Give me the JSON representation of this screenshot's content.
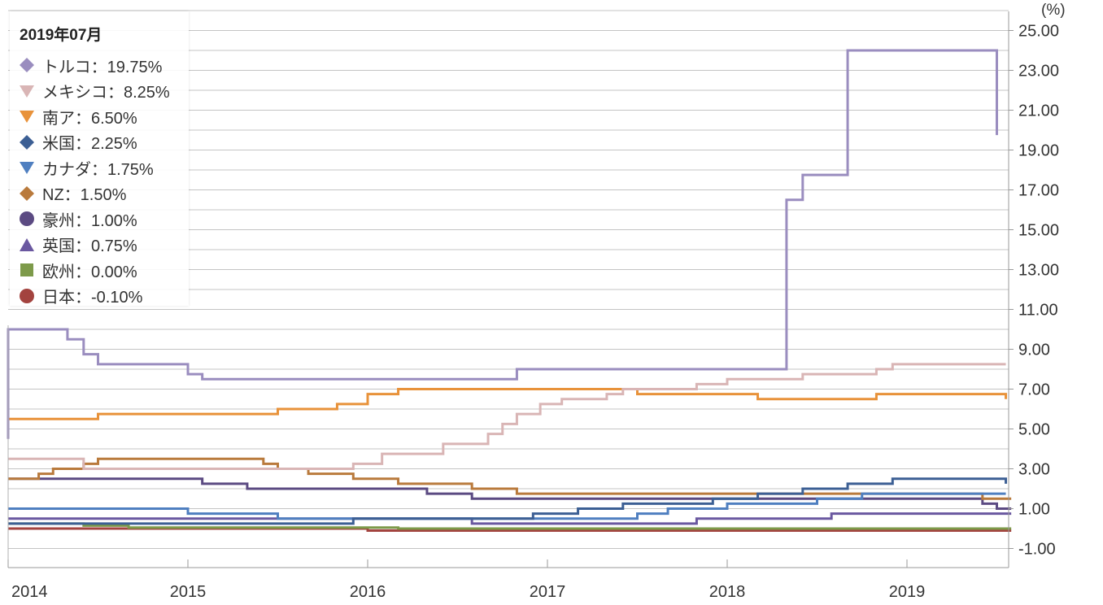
{
  "chart_data": {
    "type": "line",
    "step": true,
    "unit_label": "(%)",
    "x_ticks": [
      "2014",
      "2015",
      "2016",
      "2017",
      "2018",
      "2019"
    ],
    "y_ticks": [
      "25.00",
      "23.00",
      "21.00",
      "19.00",
      "17.00",
      "15.00",
      "13.00",
      "11.00",
      "9.00",
      "7.00",
      "5.00",
      "3.00",
      "1.00",
      "-1.00"
    ],
    "x_range": [
      2014.0,
      2019.58
    ],
    "y_range": [
      -1.5,
      26.5
    ],
    "grid": "horizontal",
    "legend_position": "top-left",
    "legend": {
      "title": "2019年07月",
      "items": [
        {
          "label": "トルコ：19.75%",
          "marker": "diamond",
          "color": "#9a8dbf"
        },
        {
          "label": "メキシコ：8.25%",
          "marker": "triangle-down",
          "color": "#d9b5b5"
        },
        {
          "label": "南ア：6.50%",
          "marker": "triangle-down",
          "color": "#e8923a"
        },
        {
          "label": "米国：2.25%",
          "marker": "diamond",
          "color": "#3c5f94"
        },
        {
          "label": "カナダ：1.75%",
          "marker": "triangle-down",
          "color": "#4f7fc0"
        },
        {
          "label": "NZ：1.50%",
          "marker": "diamond",
          "color": "#b97a3c"
        },
        {
          "label": "豪州：1.00%",
          "marker": "circle",
          "color": "#5b4a82"
        },
        {
          "label": "英国：0.75%",
          "marker": "triangle-up",
          "color": "#6a58a0"
        },
        {
          "label": "欧州：0.00%",
          "marker": "square",
          "color": "#7d9a4a"
        },
        {
          "label": "日本：-0.10%",
          "marker": "circle",
          "color": "#a3433f"
        }
      ]
    },
    "series": [
      {
        "name": "トルコ",
        "color": "#9a8dbf",
        "points": [
          [
            2014.0,
            4.5
          ],
          [
            2014.0,
            10.0
          ],
          [
            2014.33,
            9.5
          ],
          [
            2014.42,
            8.75
          ],
          [
            2014.5,
            8.25
          ],
          [
            2015.0,
            7.75
          ],
          [
            2015.08,
            7.5
          ],
          [
            2016.83,
            8.0
          ],
          [
            2018.33,
            16.5
          ],
          [
            2018.42,
            17.75
          ],
          [
            2018.67,
            24.0
          ],
          [
            2019.5,
            19.75
          ]
        ]
      },
      {
        "name": "メキシコ",
        "color": "#d9b5b5",
        "points": [
          [
            2014.0,
            3.5
          ],
          [
            2014.42,
            3.0
          ],
          [
            2015.92,
            3.25
          ],
          [
            2016.08,
            3.75
          ],
          [
            2016.42,
            4.25
          ],
          [
            2016.67,
            4.75
          ],
          [
            2016.75,
            5.25
          ],
          [
            2016.83,
            5.75
          ],
          [
            2016.96,
            6.25
          ],
          [
            2017.08,
            6.5
          ],
          [
            2017.33,
            6.75
          ],
          [
            2017.42,
            7.0
          ],
          [
            2017.83,
            7.25
          ],
          [
            2018.0,
            7.5
          ],
          [
            2018.42,
            7.75
          ],
          [
            2018.83,
            8.0
          ],
          [
            2018.92,
            8.25
          ],
          [
            2019.55,
            8.25
          ]
        ]
      },
      {
        "name": "南ア",
        "color": "#e8923a",
        "points": [
          [
            2014.0,
            5.5
          ],
          [
            2014.5,
            5.75
          ],
          [
            2015.5,
            6.0
          ],
          [
            2015.83,
            6.25
          ],
          [
            2016.0,
            6.75
          ],
          [
            2016.17,
            7.0
          ],
          [
            2017.5,
            6.75
          ],
          [
            2018.17,
            6.5
          ],
          [
            2018.83,
            6.75
          ],
          [
            2019.55,
            6.75
          ],
          [
            2019.55,
            6.5
          ]
        ]
      },
      {
        "name": "米国",
        "color": "#3c5f94",
        "points": [
          [
            2014.0,
            0.25
          ],
          [
            2015.92,
            0.5
          ],
          [
            2016.92,
            0.75
          ],
          [
            2017.17,
            1.0
          ],
          [
            2017.42,
            1.25
          ],
          [
            2017.92,
            1.5
          ],
          [
            2018.17,
            1.75
          ],
          [
            2018.42,
            2.0
          ],
          [
            2018.67,
            2.25
          ],
          [
            2018.92,
            2.5
          ],
          [
            2019.55,
            2.5
          ],
          [
            2019.55,
            2.25
          ]
        ]
      },
      {
        "name": "カナダ",
        "color": "#4f7fc0",
        "points": [
          [
            2014.0,
            1.0
          ],
          [
            2015.0,
            0.75
          ],
          [
            2015.5,
            0.5
          ],
          [
            2017.5,
            0.75
          ],
          [
            2017.67,
            1.0
          ],
          [
            2018.0,
            1.25
          ],
          [
            2018.5,
            1.5
          ],
          [
            2018.75,
            1.75
          ],
          [
            2019.55,
            1.75
          ]
        ]
      },
      {
        "name": "NZ",
        "color": "#b97a3c",
        "points": [
          [
            2014.0,
            2.5
          ],
          [
            2014.17,
            2.75
          ],
          [
            2014.25,
            3.0
          ],
          [
            2014.42,
            3.25
          ],
          [
            2014.5,
            3.5
          ],
          [
            2015.42,
            3.25
          ],
          [
            2015.5,
            3.0
          ],
          [
            2015.67,
            2.75
          ],
          [
            2015.92,
            2.5
          ],
          [
            2016.17,
            2.25
          ],
          [
            2016.58,
            2.0
          ],
          [
            2016.83,
            1.75
          ],
          [
            2019.42,
            1.5
          ],
          [
            2019.58,
            1.5
          ]
        ]
      },
      {
        "name": "豪州",
        "color": "#5b4a82",
        "points": [
          [
            2014.0,
            2.5
          ],
          [
            2015.08,
            2.25
          ],
          [
            2015.33,
            2.0
          ],
          [
            2016.33,
            1.75
          ],
          [
            2016.58,
            1.5
          ],
          [
            2019.42,
            1.25
          ],
          [
            2019.5,
            1.0
          ],
          [
            2019.58,
            1.0
          ]
        ]
      },
      {
        "name": "英国",
        "color": "#6a58a0",
        "points": [
          [
            2014.0,
            0.5
          ],
          [
            2016.58,
            0.25
          ],
          [
            2017.83,
            0.5
          ],
          [
            2018.58,
            0.75
          ],
          [
            2019.58,
            0.75
          ]
        ]
      },
      {
        "name": "欧州",
        "color": "#7d9a4a",
        "points": [
          [
            2014.0,
            0.25
          ],
          [
            2014.42,
            0.15
          ],
          [
            2014.67,
            0.05
          ],
          [
            2015.0,
            0.05
          ],
          [
            2016.17,
            0.0
          ],
          [
            2019.58,
            0.0
          ]
        ]
      },
      {
        "name": "日本",
        "color": "#a3433f",
        "points": [
          [
            2014.0,
            0.0
          ],
          [
            2016.0,
            -0.1
          ],
          [
            2019.58,
            -0.1
          ]
        ]
      }
    ]
  }
}
